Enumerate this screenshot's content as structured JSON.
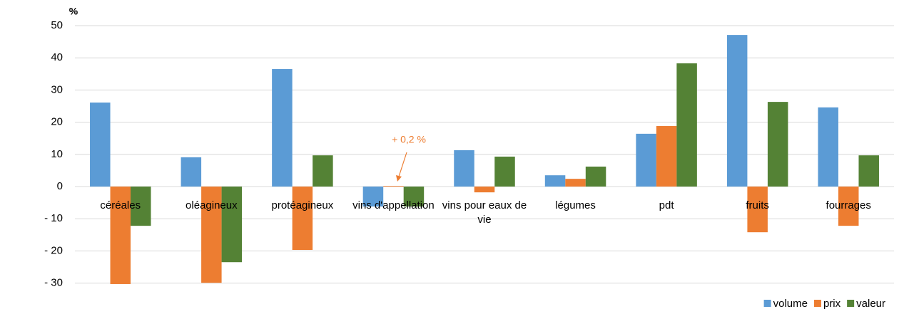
{
  "chart_data": {
    "type": "bar",
    "y_axis_label": "%",
    "categories": [
      "céréales",
      "oléagineux",
      "protéagineux",
      "vins d'appellation",
      "vins pour eaux de vie",
      "légumes",
      "pdt",
      "fruits",
      "fourrages"
    ],
    "series": [
      {
        "name": "volume",
        "color": "#5b9bd5",
        "values": [
          26.1,
          9.1,
          36.5,
          -6.2,
          11.3,
          3.5,
          16.4,
          47.1,
          24.6
        ]
      },
      {
        "name": "prix",
        "color": "#ed7d31",
        "values": [
          -30.3,
          -29.9,
          -19.7,
          0.2,
          -1.8,
          2.4,
          18.8,
          -14.2,
          -12.2
        ]
      },
      {
        "name": "valeur",
        "color": "#548235",
        "values": [
          -12.2,
          -23.5,
          9.7,
          -6.2,
          9.3,
          6.2,
          38.3,
          26.3,
          9.7
        ]
      }
    ],
    "annotation": "+ 0,2 %",
    "ylim": [
      -30,
      50
    ],
    "yticks": [
      {
        "value": -30,
        "label": "- 30"
      },
      {
        "value": -20,
        "label": "- 20"
      },
      {
        "value": -10,
        "label": "- 10"
      },
      0,
      10,
      20,
      30,
      40,
      50
    ],
    "grid": true,
    "legend": "bottom-right"
  }
}
